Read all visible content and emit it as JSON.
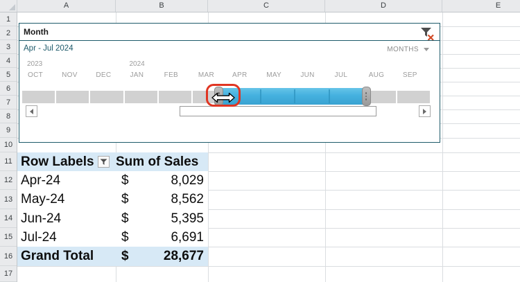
{
  "spreadsheet": {
    "column_headers": [
      "A",
      "B",
      "C",
      "D",
      "E"
    ],
    "row_numbers": [
      "1",
      "2",
      "3",
      "4",
      "5",
      "6",
      "7",
      "8",
      "9",
      "10",
      "11",
      "12",
      "13",
      "14",
      "15",
      "16",
      "17"
    ]
  },
  "timeline": {
    "title": "Month",
    "selected_range_label": "Apr - Jul 2024",
    "time_level": "MONTHS",
    "years": [
      {
        "label": "2023",
        "start_month_index": 0
      },
      {
        "label": "2024",
        "start_month_index": 3
      }
    ],
    "months": [
      "OCT",
      "NOV",
      "DEC",
      "JAN",
      "FEB",
      "MAR",
      "APR",
      "MAY",
      "JUN",
      "JUL",
      "AUG",
      "SEP"
    ],
    "selection": {
      "start_month": "APR",
      "end_month": "JUL",
      "start_index": 6,
      "end_index": 9
    }
  },
  "pivot_table": {
    "header": {
      "row_labels": "Row Labels",
      "values": "Sum of Sales"
    },
    "rows": [
      {
        "label": "Apr-24",
        "currency": "$",
        "value": "8,029"
      },
      {
        "label": "May-24",
        "currency": "$",
        "value": "8,562"
      },
      {
        "label": "Jun-24",
        "currency": "$",
        "value": "5,395"
      },
      {
        "label": "Jul-24",
        "currency": "$",
        "value": "6,691"
      }
    ],
    "grand_total": {
      "label": "Grand Total",
      "currency": "$",
      "value": "28,677"
    }
  },
  "cursor": {
    "type": "horizontal-resize",
    "annotation": "red-rounded-rectangle"
  },
  "colors": {
    "timeline_accent": "#1E5A6A",
    "selection_blue": "#45B1DF",
    "selection_blue_dark": "#2D93BF",
    "annotation_red": "#E03522",
    "pivot_header_fill": "#D7E9F6",
    "muted_label": "#9C9C9C"
  }
}
